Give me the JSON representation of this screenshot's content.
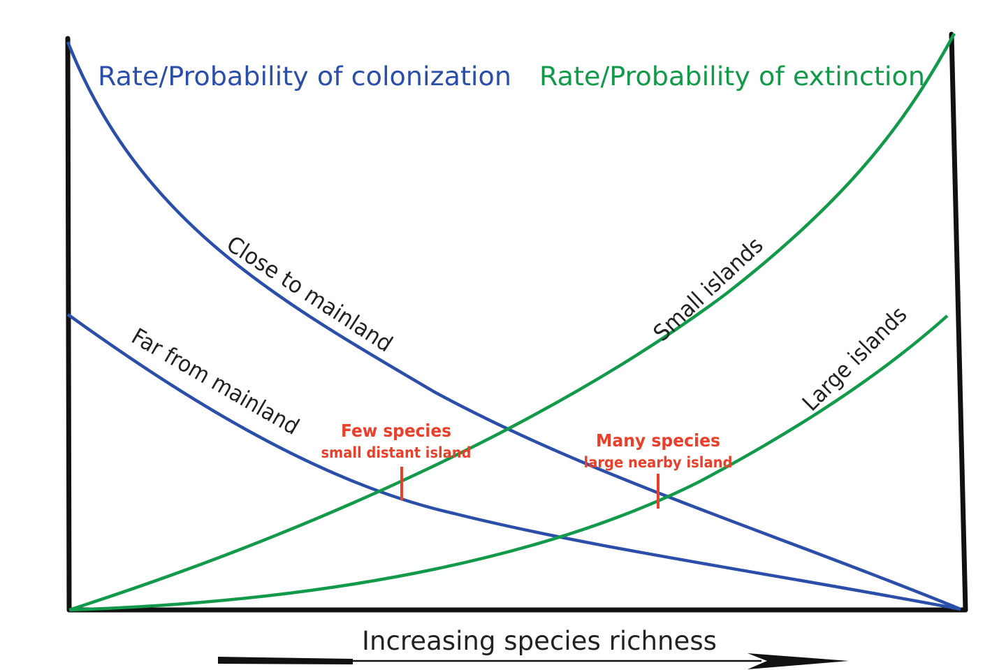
{
  "colors": {
    "colonization": "#2b4fa8",
    "extinction": "#12994a",
    "annotation": "#e8402a",
    "frame": "#111111"
  },
  "titles": {
    "colonization": "Rate/Probability of colonization",
    "extinction": "Rate/Probability of extinction"
  },
  "curve_labels": {
    "close": "Close to mainland",
    "far": "Far from mainland",
    "small": "Small islands",
    "large": "Large islands"
  },
  "annotations": {
    "few_main": "Few species",
    "few_sub": "small distant island",
    "many_main": "Many species",
    "many_sub": "large nearby island"
  },
  "x_axis": {
    "label": "Increasing species richness"
  }
}
